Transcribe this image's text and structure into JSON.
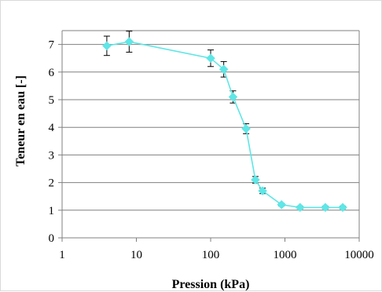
{
  "chart_data": {
    "type": "scatter",
    "title": "",
    "xlabel": "Pression (kPa)",
    "ylabel": "Teneur en eau [-]",
    "xscale": "log",
    "xlim": [
      1,
      10000
    ],
    "ylim": [
      0,
      7.5
    ],
    "x_ticks": [
      1,
      10,
      100,
      1000,
      10000
    ],
    "x_tick_labels": [
      "1",
      "10",
      "100",
      "1000",
      "10000"
    ],
    "y_ticks": [
      0,
      1,
      2,
      3,
      4,
      5,
      6,
      7
    ],
    "y_tick_labels": [
      "0",
      "1",
      "2",
      "3",
      "4",
      "5",
      "6",
      "7"
    ],
    "grid": "horizontal",
    "legend": "none",
    "series": [
      {
        "color": "#5fe6e6",
        "marker": "diamond",
        "connected": true,
        "x": [
          4,
          8,
          100,
          150,
          200,
          300,
          400,
          500,
          900,
          1600,
          3500,
          6000
        ],
        "y": [
          6.95,
          7.1,
          6.5,
          6.1,
          5.1,
          3.95,
          2.1,
          1.7,
          1.2,
          1.1,
          1.1,
          1.1
        ],
        "error": [
          0.35,
          0.38,
          0.3,
          0.28,
          0.22,
          0.18,
          0.12,
          0.1,
          0.05,
          0.05,
          0.05,
          0.05
        ]
      }
    ]
  }
}
